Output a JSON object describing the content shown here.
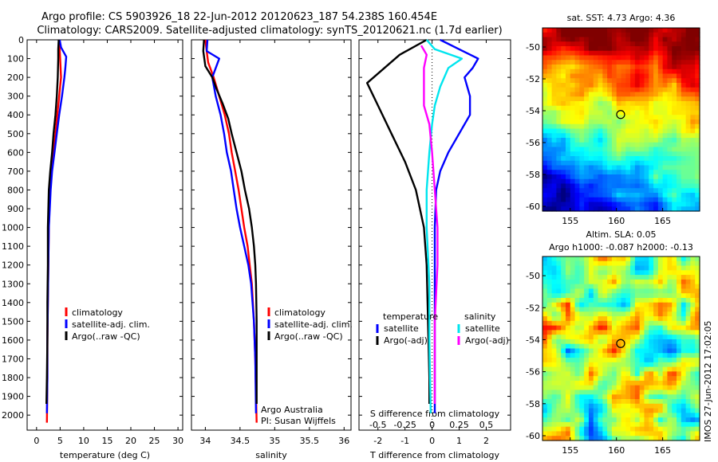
{
  "header": {
    "line1": "Argo profile: CS 5903926_18 22-Jun-2012 20120623_187 54.238S 160.454E",
    "line2": "Climatology: CARS2009. Satellite-adjusted climatology: synTS_20120621.nc (1.7d earlier)"
  },
  "colors": {
    "climatology": "#ff0000",
    "satellite": "#0000ff",
    "argo": "#000000",
    "argo_s_diff": "#ff00ff",
    "satellite_s_diff": "#00e5ee"
  },
  "chart_data": [
    {
      "type": "line",
      "name": "temperature-profile",
      "xlabel": "temperature (deg C)",
      "ylabel": "",
      "xlim": [
        -2,
        31
      ],
      "ylim": [
        2080,
        0
      ],
      "xticks": [
        0,
        5,
        10,
        15,
        20,
        25,
        30
      ],
      "yticks": [
        0,
        100,
        200,
        300,
        400,
        500,
        600,
        700,
        800,
        900,
        1000,
        1100,
        1200,
        1300,
        1400,
        1500,
        1600,
        1700,
        1800,
        1900,
        2000
      ],
      "legend": {
        "position": "center-bottom",
        "entries": [
          "climatology",
          "satellite-adj. clim.",
          "Argo(..raw -QC)"
        ]
      },
      "series": [
        {
          "name": "climatology",
          "color": "#ff0000",
          "points": [
            [
              4.8,
              0
            ],
            [
              4.9,
              50
            ],
            [
              5.0,
              100
            ],
            [
              5.2,
              200
            ],
            [
              4.8,
              300
            ],
            [
              4.4,
              400
            ],
            [
              4.0,
              500
            ],
            [
              3.6,
              600
            ],
            [
              3.1,
              700
            ],
            [
              2.9,
              800
            ],
            [
              2.7,
              900
            ],
            [
              2.6,
              1000
            ],
            [
              2.5,
              1200
            ],
            [
              2.4,
              1400
            ],
            [
              2.3,
              1600
            ],
            [
              2.3,
              1800
            ],
            [
              2.2,
              2040
            ]
          ]
        },
        {
          "name": "satellite-adj. clim.",
          "color": "#0000ff",
          "points": [
            [
              4.9,
              0
            ],
            [
              5.2,
              40
            ],
            [
              6.3,
              90
            ],
            [
              6.1,
              150
            ],
            [
              5.9,
              200
            ],
            [
              5.4,
              300
            ],
            [
              4.8,
              400
            ],
            [
              4.3,
              500
            ],
            [
              3.8,
              600
            ],
            [
              3.3,
              700
            ],
            [
              3.0,
              800
            ],
            [
              2.8,
              900
            ],
            [
              2.6,
              1000
            ],
            [
              2.5,
              1200
            ],
            [
              2.4,
              1400
            ],
            [
              2.3,
              1600
            ],
            [
              2.3,
              1800
            ],
            [
              2.2,
              1990
            ]
          ]
        },
        {
          "name": "Argo(..raw -QC)",
          "color": "#000000",
          "points": [
            [
              4.7,
              0
            ],
            [
              4.6,
              50
            ],
            [
              4.6,
              100
            ],
            [
              4.5,
              200
            ],
            [
              4.3,
              300
            ],
            [
              4.0,
              400
            ],
            [
              3.6,
              500
            ],
            [
              3.3,
              600
            ],
            [
              2.9,
              700
            ],
            [
              2.6,
              800
            ],
            [
              2.5,
              900
            ],
            [
              2.4,
              1000
            ],
            [
              2.4,
              1200
            ],
            [
              2.3,
              1400
            ],
            [
              2.3,
              1600
            ],
            [
              2.2,
              1800
            ],
            [
              2.1,
              1940
            ]
          ]
        }
      ]
    },
    {
      "type": "line",
      "name": "salinity-profile",
      "xlabel": "salinity",
      "xlim": [
        33.8,
        36.1
      ],
      "ylim": [
        2080,
        0
      ],
      "xticks": [
        34,
        34.5,
        35,
        35.5,
        36
      ],
      "xticklabels": [
        "34",
        "34.5",
        "35",
        "35.5",
        "36"
      ],
      "legend": {
        "position": "center-bottom",
        "entries": [
          "climatology",
          "satellite-adj. clim.",
          "Argo(..raw -QC)"
        ]
      },
      "annotation": [
        "Argo Australia",
        "PI: Susan Wijffels"
      ],
      "series": [
        {
          "name": "climatology",
          "color": "#ff0000",
          "points": [
            [
              34.0,
              0
            ],
            [
              34.02,
              60
            ],
            [
              34.04,
              120
            ],
            [
              34.12,
              200
            ],
            [
              34.2,
              300
            ],
            [
              34.28,
              400
            ],
            [
              34.34,
              500
            ],
            [
              34.38,
              600
            ],
            [
              34.43,
              700
            ],
            [
              34.48,
              800
            ],
            [
              34.52,
              900
            ],
            [
              34.56,
              1000
            ],
            [
              34.61,
              1100
            ],
            [
              34.64,
              1200
            ],
            [
              34.67,
              1300
            ],
            [
              34.7,
              1500
            ],
            [
              34.72,
              1700
            ],
            [
              34.74,
              2040
            ]
          ]
        },
        {
          "name": "satellite-adj. clim.",
          "color": "#0000ff",
          "points": [
            [
              34.03,
              0
            ],
            [
              34.02,
              60
            ],
            [
              34.2,
              100
            ],
            [
              34.1,
              200
            ],
            [
              34.15,
              300
            ],
            [
              34.22,
              400
            ],
            [
              34.27,
              500
            ],
            [
              34.31,
              600
            ],
            [
              34.37,
              700
            ],
            [
              34.41,
              800
            ],
            [
              34.45,
              900
            ],
            [
              34.5,
              1000
            ],
            [
              34.56,
              1100
            ],
            [
              34.62,
              1200
            ],
            [
              34.66,
              1300
            ],
            [
              34.7,
              1500
            ],
            [
              34.72,
              1700
            ],
            [
              34.73,
              1990
            ]
          ]
        },
        {
          "name": "Argo(..raw -QC)",
          "color": "#000000",
          "points": [
            [
              33.98,
              0
            ],
            [
              33.97,
              60
            ],
            [
              34.0,
              140
            ],
            [
              34.1,
              200
            ],
            [
              34.16,
              260
            ],
            [
              34.25,
              340
            ],
            [
              34.33,
              420
            ],
            [
              34.38,
              500
            ],
            [
              34.45,
              600
            ],
            [
              34.52,
              700
            ],
            [
              34.57,
              800
            ],
            [
              34.63,
              900
            ],
            [
              34.67,
              1000
            ],
            [
              34.7,
              1100
            ],
            [
              34.72,
              1200
            ],
            [
              34.73,
              1300
            ],
            [
              34.74,
              1500
            ],
            [
              34.74,
              1700
            ],
            [
              34.74,
              1940
            ]
          ]
        }
      ]
    },
    {
      "type": "line",
      "name": "difference-profile",
      "xlabel": "T difference from climatology",
      "xlabel_top": "S difference from climatology",
      "xlim": [
        -2.7,
        2.9
      ],
      "ylim": [
        2080,
        0
      ],
      "xticks": [
        -2,
        -1,
        0,
        1,
        2
      ],
      "s_ticklabels": [
        "-0.5",
        "-0.25",
        "0",
        "0.25",
        "0.5"
      ],
      "legend": {
        "temperature_header": "temperature",
        "salinity_header": "salinity",
        "entries": [
          {
            "label": "satellite",
            "color": "#0000ff"
          },
          {
            "label": "Argo(-adj)",
            "color": "#000000"
          },
          {
            "label": "satellite",
            "color": "#00e5ee"
          },
          {
            "label": "Argo(-adj)",
            "color": "#ff00ff"
          }
        ]
      },
      "series": [
        {
          "name": "T satellite",
          "color": "#0000ff",
          "points": [
            [
              0.3,
              0
            ],
            [
              1.0,
              50
            ],
            [
              1.7,
              100
            ],
            [
              1.5,
              150
            ],
            [
              1.2,
              200
            ],
            [
              1.4,
              300
            ],
            [
              1.4,
              400
            ],
            [
              1.0,
              500
            ],
            [
              0.6,
              600
            ],
            [
              0.3,
              700
            ],
            [
              0.15,
              800
            ],
            [
              0.1,
              1000
            ],
            [
              0.1,
              1400
            ],
            [
              0.1,
              1800
            ],
            [
              0.1,
              1990
            ]
          ]
        },
        {
          "name": "T Argo(-adj)",
          "color": "#000000",
          "points": [
            [
              -0.2,
              0
            ],
            [
              -1.2,
              80
            ],
            [
              -2.4,
              230
            ],
            [
              -2.0,
              350
            ],
            [
              -1.5,
              500
            ],
            [
              -1.0,
              650
            ],
            [
              -0.6,
              800
            ],
            [
              -0.3,
              1000
            ],
            [
              -0.2,
              1200
            ],
            [
              -0.15,
              1500
            ],
            [
              -0.1,
              1800
            ],
            [
              -0.1,
              1940
            ]
          ]
        },
        {
          "name": "S satellite",
          "color": "#00e5ee",
          "points": [
            [
              -0.2,
              0
            ],
            [
              0.1,
              50
            ],
            [
              1.1,
              100
            ],
            [
              0.6,
              150
            ],
            [
              0.3,
              250
            ],
            [
              0.1,
              350
            ],
            [
              0.0,
              450
            ],
            [
              -0.1,
              600
            ],
            [
              -0.2,
              800
            ],
            [
              -0.2,
              1000
            ],
            [
              -0.1,
              1300
            ],
            [
              -0.1,
              1600
            ],
            [
              -0.05,
              1990
            ]
          ]
        },
        {
          "name": "S Argo(-adj)",
          "color": "#ff00ff",
          "points": [
            [
              -0.4,
              30
            ],
            [
              -0.2,
              80
            ],
            [
              -0.3,
              150
            ],
            [
              -0.3,
              250
            ],
            [
              -0.3,
              350
            ],
            [
              -0.1,
              450
            ],
            [
              0.0,
              600
            ],
            [
              0.1,
              800
            ],
            [
              0.2,
              1000
            ],
            [
              0.2,
              1200
            ],
            [
              0.1,
              1500
            ],
            [
              0.1,
              1800
            ],
            [
              0.1,
              1940
            ]
          ]
        }
      ]
    },
    {
      "type": "heatmap",
      "name": "sst-map",
      "title": "sat. SST: 4.73  Argo: 4.36",
      "xlim": [
        152,
        169
      ],
      "ylim": [
        -60.3,
        -48.8
      ],
      "xticks": [
        155,
        160,
        165
      ],
      "yticks": [
        -50,
        -52,
        -54,
        -56,
        -58,
        -60
      ],
      "marker": {
        "lon": 160.454,
        "lat": -54.238
      }
    },
    {
      "type": "heatmap",
      "name": "sla-map",
      "title": "Altim. SLA: 0.05",
      "subtitle": "Argo h1000: -0.087  h2000: -0.13",
      "xlim": [
        152,
        169
      ],
      "ylim": [
        -60.3,
        -48.8
      ],
      "xticks": [
        155,
        160,
        165
      ],
      "yticks": [
        -50,
        -52,
        -54,
        -56,
        -58,
        -60
      ],
      "marker": {
        "lon": 160.454,
        "lat": -54.238
      }
    }
  ],
  "footer": {
    "stamp": "IMOS 27-Jun-2012 17:02:05"
  }
}
